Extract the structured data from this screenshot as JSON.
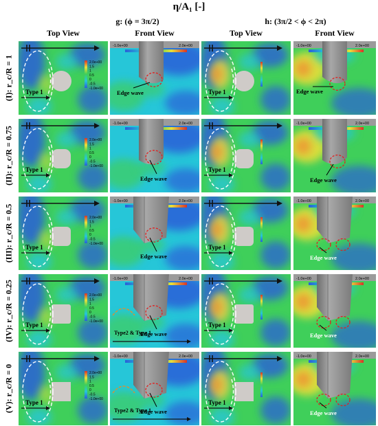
{
  "title": "η/A₁ [-]",
  "groups": [
    {
      "label": "g: (ϕ = 3π/2)"
    },
    {
      "label": "h: (3π/2 < ϕ < 2π)"
    }
  ],
  "view_labels": [
    "Top View",
    "Front View",
    "Top View",
    "Front View"
  ],
  "rows": [
    {
      "label": "(I): r_c/R = 1",
      "shape": "circle"
    },
    {
      "label": "(II): r_c/R = 0.75",
      "shape": "rounded-large"
    },
    {
      "label": "(III): r_c/R = 0.5",
      "shape": "rounded-medium"
    },
    {
      "label": "(IV): r_c/R = 0.25",
      "shape": "rounded-small"
    },
    {
      "label": "(V): r_c/R = 0",
      "shape": "square"
    }
  ],
  "colorbar": {
    "ticks": [
      "2.0e+00",
      "1.5",
      "1",
      "0.5",
      "0",
      "-0.5",
      "-1.0e+00"
    ],
    "front_ticks": [
      "-1.0e+00",
      "0",
      "0.5",
      "1",
      "2.0e+00"
    ]
  },
  "annotations": {
    "type1": "Type 1",
    "edge_wave": "Edge wave",
    "type2_type1": "Type2 & Type 1"
  },
  "colors": {
    "blue": "#2a5fd8",
    "cyan": "#26c6d8",
    "green": "#3fcf5a",
    "yellow": "#e8e03a",
    "orange": "#f09030",
    "red": "#d8322a",
    "structure": "#cfcbc8",
    "cylinder": "#8e8e8e"
  }
}
